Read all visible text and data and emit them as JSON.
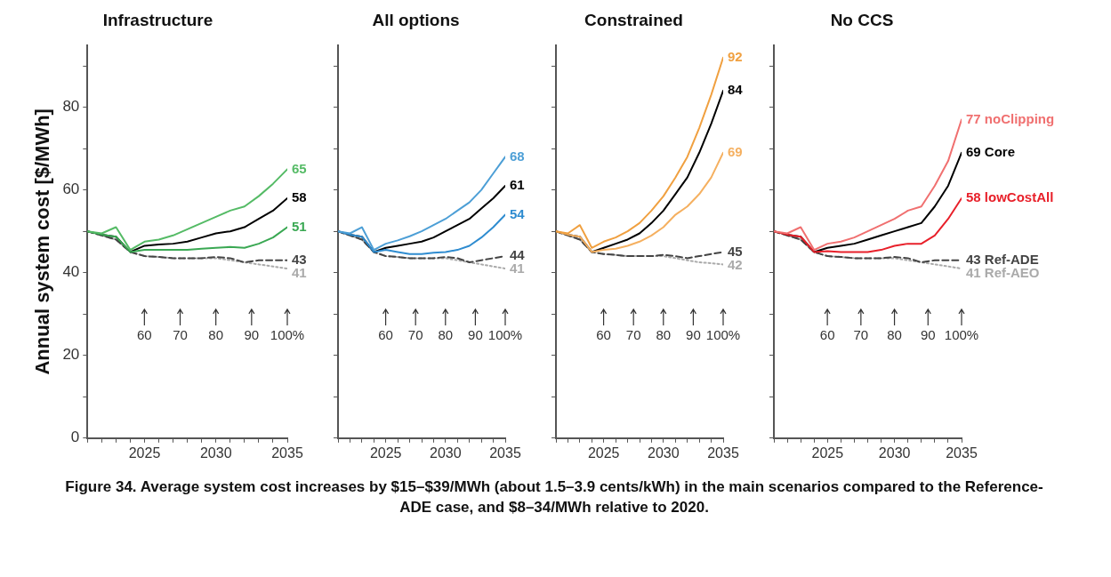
{
  "chart_data": [
    {
      "type": "line",
      "title": "Infrastructure",
      "ylabel": "Annual system cost [$/MWh]",
      "x": [
        2021,
        2022,
        2023,
        2024,
        2025,
        2026,
        2027,
        2028,
        2029,
        2030,
        2031,
        2032,
        2033,
        2034,
        2035
      ],
      "xlim": [
        2021,
        2035
      ],
      "ylim": [
        0,
        95
      ],
      "xticks": [
        {
          "value": 2021,
          "label": null
        },
        {
          "value": 2022,
          "label": null
        },
        {
          "value": 2023,
          "label": null
        },
        {
          "value": 2024,
          "label": null
        },
        2025,
        {
          "value": 2026,
          "label": null
        },
        {
          "value": 2027,
          "label": null
        },
        {
          "value": 2028,
          "label": null
        },
        {
          "value": 2029,
          "label": null
        },
        2030,
        {
          "value": 2031,
          "label": null
        },
        {
          "value": 2032,
          "label": null
        },
        {
          "value": 2033,
          "label": null
        },
        {
          "value": 2034,
          "label": null
        },
        2035
      ],
      "yticks": [
        0,
        {
          "value": 10,
          "label": null
        },
        20,
        {
          "value": 30,
          "label": null
        },
        40,
        {
          "value": 50,
          "label": null
        },
        60,
        {
          "value": 70,
          "label": null
        },
        80,
        {
          "value": 90,
          "label": null
        }
      ],
      "series": [
        {
          "color": "#55bb66",
          "values": [
            50,
            49.5,
            51,
            45.5,
            47.5,
            48,
            49,
            50.5,
            52,
            53.5,
            55,
            56,
            58.5,
            61.5,
            65
          ],
          "value_labels": [
            null,
            null,
            null,
            null,
            null,
            null,
            null,
            null,
            null,
            null,
            null,
            null,
            null,
            null,
            "65"
          ]
        },
        {
          "color": "#3aa853",
          "values": [
            50,
            49.2,
            48.7,
            45,
            45.5,
            45.5,
            45.5,
            45.5,
            45.8,
            46,
            46.2,
            46,
            47,
            48.5,
            51
          ],
          "value_labels": [
            null,
            null,
            null,
            null,
            null,
            null,
            null,
            null,
            null,
            null,
            null,
            null,
            null,
            null,
            "51"
          ]
        },
        {
          "color": "#000000",
          "values": [
            50,
            49.2,
            48.7,
            45,
            46.5,
            46.8,
            47,
            47.5,
            48.5,
            49.5,
            50,
            51,
            53,
            55,
            58
          ],
          "value_labels": [
            null,
            null,
            null,
            null,
            null,
            null,
            null,
            null,
            null,
            null,
            null,
            null,
            null,
            null,
            "58"
          ]
        },
        {
          "color": "#444444",
          "line_style": "dashed",
          "values": [
            50,
            49,
            48,
            45,
            44,
            43.8,
            43.5,
            43.5,
            43.5,
            43.8,
            43.5,
            42.5,
            43,
            43,
            43
          ],
          "value_labels": [
            null,
            null,
            null,
            null,
            null,
            null,
            null,
            null,
            null,
            null,
            null,
            null,
            null,
            null,
            "43"
          ]
        },
        {
          "color": "#aaaaaa",
          "line_style": "dotted",
          "values": [
            50,
            49,
            48,
            45,
            44,
            43.8,
            43.5,
            43.5,
            43.5,
            43.5,
            43,
            42.5,
            42,
            41.5,
            41
          ],
          "value_labels": [
            null,
            null,
            null,
            null,
            null,
            null,
            null,
            null,
            null,
            null,
            null,
            null,
            null,
            null,
            "41"
          ]
        }
      ],
      "annotations": [
        "60",
        "70",
        "80",
        "90",
        "100%",
        "Figure 34. Average system cost increases by $15–$39/MWh (about 1.5–3.9 cents/kWh) in the main scenarios compared to the Reference-ADE case, and $8–34/MWh relative to 2020."
      ]
    },
    {
      "type": "line",
      "title": "All options",
      "tick_labels": "x",
      "x": [
        2021,
        2022,
        2023,
        2024,
        2025,
        2026,
        2027,
        2028,
        2029,
        2030,
        2031,
        2032,
        2033,
        2034,
        2035
      ],
      "xlim": [
        2021,
        2035
      ],
      "ylim": [
        0,
        95
      ],
      "xticks": [
        {
          "value": 2021,
          "label": null
        },
        {
          "value": 2022,
          "label": null
        },
        {
          "value": 2023,
          "label": null
        },
        {
          "value": 2024,
          "label": null
        },
        2025,
        {
          "value": 2026,
          "label": null
        },
        {
          "value": 2027,
          "label": null
        },
        {
          "value": 2028,
          "label": null
        },
        {
          "value": 2029,
          "label": null
        },
        2030,
        {
          "value": 2031,
          "label": null
        },
        {
          "value": 2032,
          "label": null
        },
        {
          "value": 2033,
          "label": null
        },
        {
          "value": 2034,
          "label": null
        },
        2035
      ],
      "yticks": [
        0,
        {
          "value": 10,
          "label": null
        },
        20,
        {
          "value": 30,
          "label": null
        },
        40,
        {
          "value": 50,
          "label": null
        },
        60,
        {
          "value": 70,
          "label": null
        },
        80,
        {
          "value": 90,
          "label": null
        }
      ],
      "series": [
        {
          "color": "#4d9fd6",
          "values": [
            50,
            49.5,
            51,
            45.5,
            47,
            47.8,
            48.8,
            50,
            51.5,
            53,
            55,
            57,
            60,
            64,
            68
          ],
          "value_labels": [
            null,
            null,
            null,
            null,
            null,
            null,
            null,
            null,
            null,
            null,
            null,
            null,
            null,
            null,
            "68"
          ]
        },
        {
          "color": "#2f8cd0",
          "values": [
            50,
            49.2,
            48.7,
            45,
            45.5,
            45,
            44.5,
            44.5,
            44.8,
            45,
            45.5,
            46.5,
            48.5,
            51,
            54
          ],
          "value_labels": [
            null,
            null,
            null,
            null,
            null,
            null,
            null,
            null,
            null,
            null,
            null,
            null,
            null,
            null,
            "54"
          ]
        },
        {
          "color": "#000000",
          "values": [
            50,
            49.2,
            48.7,
            45,
            46,
            46.5,
            47,
            47.5,
            48.5,
            50,
            51.5,
            53,
            55.5,
            58,
            61
          ],
          "value_labels": [
            null,
            null,
            null,
            null,
            null,
            null,
            null,
            null,
            null,
            null,
            null,
            null,
            null,
            null,
            "61"
          ]
        },
        {
          "color": "#444444",
          "line_style": "dashed",
          "values": [
            50,
            49,
            48,
            45,
            44,
            43.8,
            43.5,
            43.5,
            43.5,
            43.8,
            43.5,
            42.5,
            43,
            43.5,
            44
          ],
          "value_labels": [
            null,
            null,
            null,
            null,
            null,
            null,
            null,
            null,
            null,
            null,
            null,
            null,
            null,
            null,
            "44"
          ]
        },
        {
          "color": "#aaaaaa",
          "line_style": "dotted",
          "values": [
            50,
            49,
            48,
            45,
            44,
            43.8,
            43.5,
            43.5,
            43.5,
            43.5,
            43,
            42.5,
            42,
            41.5,
            41
          ],
          "value_labels": [
            null,
            null,
            null,
            null,
            null,
            null,
            null,
            null,
            null,
            null,
            null,
            null,
            null,
            null,
            "41"
          ]
        }
      ],
      "annotations": [
        "60",
        "70",
        "80",
        "90",
        "100%"
      ]
    },
    {
      "type": "line",
      "title": "Constrained",
      "tick_labels": "x",
      "x": [
        2021,
        2022,
        2023,
        2024,
        2025,
        2026,
        2027,
        2028,
        2029,
        2030,
        2031,
        2032,
        2033,
        2034,
        2035
      ],
      "xlim": [
        2021,
        2035
      ],
      "ylim": [
        0,
        95
      ],
      "xticks": [
        {
          "value": 2021,
          "label": null
        },
        {
          "value": 2022,
          "label": null
        },
        {
          "value": 2023,
          "label": null
        },
        {
          "value": 2024,
          "label": null
        },
        2025,
        {
          "value": 2026,
          "label": null
        },
        {
          "value": 2027,
          "label": null
        },
        {
          "value": 2028,
          "label": null
        },
        {
          "value": 2029,
          "label": null
        },
        2030,
        {
          "value": 2031,
          "label": null
        },
        {
          "value": 2032,
          "label": null
        },
        {
          "value": 2033,
          "label": null
        },
        {
          "value": 2034,
          "label": null
        },
        2035
      ],
      "yticks": [
        0,
        {
          "value": 10,
          "label": null
        },
        20,
        {
          "value": 30,
          "label": null
        },
        40,
        {
          "value": 50,
          "label": null
        },
        60,
        {
          "value": 70,
          "label": null
        },
        80,
        {
          "value": 90,
          "label": null
        }
      ],
      "series": [
        {
          "color": "#f0a040",
          "values": [
            50,
            49.5,
            51.5,
            46,
            47.5,
            48.5,
            50,
            52,
            55,
            58.5,
            63,
            68,
            75,
            83,
            92
          ],
          "value_labels": [
            null,
            null,
            null,
            null,
            null,
            null,
            null,
            null,
            null,
            null,
            null,
            null,
            null,
            null,
            "92"
          ]
        },
        {
          "color": "#f5b060",
          "values": [
            50,
            49.2,
            48.7,
            45,
            45.5,
            45.8,
            46.5,
            47.5,
            49,
            51,
            54,
            56,
            59,
            63,
            69
          ],
          "value_labels": [
            null,
            null,
            null,
            null,
            null,
            null,
            null,
            null,
            null,
            null,
            null,
            null,
            null,
            null,
            "69"
          ]
        },
        {
          "color": "#000000",
          "values": [
            50,
            49.2,
            48.7,
            45,
            46,
            47,
            48,
            49.5,
            52,
            55,
            59,
            63,
            69,
            76,
            84
          ],
          "value_labels": [
            null,
            null,
            null,
            null,
            null,
            null,
            null,
            null,
            null,
            null,
            null,
            null,
            null,
            null,
            "84"
          ]
        },
        {
          "color": "#444444",
          "line_style": "dashed",
          "values": [
            50,
            49,
            48,
            45,
            44.5,
            44.3,
            44,
            44,
            44,
            44.3,
            44,
            43.5,
            44,
            44.5,
            45
          ],
          "value_labels": [
            null,
            null,
            null,
            null,
            null,
            null,
            null,
            null,
            null,
            null,
            null,
            null,
            null,
            null,
            "45"
          ]
        },
        {
          "color": "#aaaaaa",
          "line_style": "dotted",
          "values": [
            50,
            49,
            48,
            45,
            44.5,
            44.3,
            44,
            44,
            44,
            44,
            43.5,
            43,
            42.5,
            42.3,
            42
          ],
          "value_labels": [
            null,
            null,
            null,
            null,
            null,
            null,
            null,
            null,
            null,
            null,
            null,
            null,
            null,
            null,
            "42"
          ]
        }
      ],
      "annotations": [
        "60",
        "70",
        "80",
        "90",
        "100%"
      ]
    },
    {
      "type": "line",
      "title": "No CCS",
      "tick_labels": "x",
      "x": [
        2021,
        2022,
        2023,
        2024,
        2025,
        2026,
        2027,
        2028,
        2029,
        2030,
        2031,
        2032,
        2033,
        2034,
        2035
      ],
      "xlim": [
        2021,
        2035
      ],
      "ylim": [
        0,
        95
      ],
      "xticks": [
        {
          "value": 2021,
          "label": null
        },
        {
          "value": 2022,
          "label": null
        },
        {
          "value": 2023,
          "label": null
        },
        {
          "value": 2024,
          "label": null
        },
        2025,
        {
          "value": 2026,
          "label": null
        },
        {
          "value": 2027,
          "label": null
        },
        {
          "value": 2028,
          "label": null
        },
        {
          "value": 2029,
          "label": null
        },
        2030,
        {
          "value": 2031,
          "label": null
        },
        {
          "value": 2032,
          "label": null
        },
        {
          "value": 2033,
          "label": null
        },
        {
          "value": 2034,
          "label": null
        },
        2035
      ],
      "yticks": [
        0,
        {
          "value": 10,
          "label": null
        },
        20,
        {
          "value": 30,
          "label": null
        },
        40,
        {
          "value": 50,
          "label": null
        },
        60,
        {
          "value": 70,
          "label": null
        },
        80,
        {
          "value": 90,
          "label": null
        }
      ],
      "series": [
        {
          "name": "noClipping",
          "color": "#f07070",
          "values": [
            50,
            49.5,
            51,
            45.5,
            47,
            47.5,
            48.5,
            50,
            51.5,
            53,
            55,
            56,
            61,
            67,
            77
          ],
          "value_labels": [
            null,
            null,
            null,
            null,
            null,
            null,
            null,
            null,
            null,
            null,
            null,
            null,
            null,
            null,
            "77"
          ]
        },
        {
          "name": "lowCostAll",
          "color": "#e8202a",
          "values": [
            50,
            49.2,
            48.7,
            45,
            45.2,
            45,
            45,
            45,
            45.5,
            46.5,
            47,
            47,
            49,
            53,
            58
          ],
          "value_labels": [
            null,
            null,
            null,
            null,
            null,
            null,
            null,
            null,
            null,
            null,
            null,
            null,
            null,
            null,
            "58"
          ]
        },
        {
          "name": "Core",
          "color": "#000000",
          "values": [
            50,
            49.2,
            48.7,
            45,
            46,
            46.5,
            47,
            48,
            49,
            50,
            51,
            52,
            56,
            61,
            69
          ],
          "value_labels": [
            null,
            null,
            null,
            null,
            null,
            null,
            null,
            null,
            null,
            null,
            null,
            null,
            null,
            null,
            "69"
          ]
        },
        {
          "name": "Ref-ADE",
          "color": "#444444",
          "line_style": "dashed",
          "values": [
            50,
            49,
            48,
            45,
            44,
            43.8,
            43.5,
            43.5,
            43.5,
            43.8,
            43.5,
            42.5,
            43,
            43,
            43
          ],
          "value_labels": [
            null,
            null,
            null,
            null,
            null,
            null,
            null,
            null,
            null,
            null,
            null,
            null,
            null,
            null,
            "43"
          ]
        },
        {
          "name": "Ref-AEO",
          "color": "#aaaaaa",
          "line_style": "dotted",
          "values": [
            50,
            49,
            48,
            45,
            44,
            43.8,
            43.5,
            43.5,
            43.5,
            43.5,
            43,
            42.5,
            42,
            41.5,
            41
          ],
          "value_labels": [
            null,
            null,
            null,
            null,
            null,
            null,
            null,
            null,
            null,
            null,
            null,
            null,
            null,
            null,
            "41"
          ]
        }
      ],
      "annotations": [
        "60",
        "70",
        "80",
        "90",
        "100%"
      ]
    }
  ]
}
